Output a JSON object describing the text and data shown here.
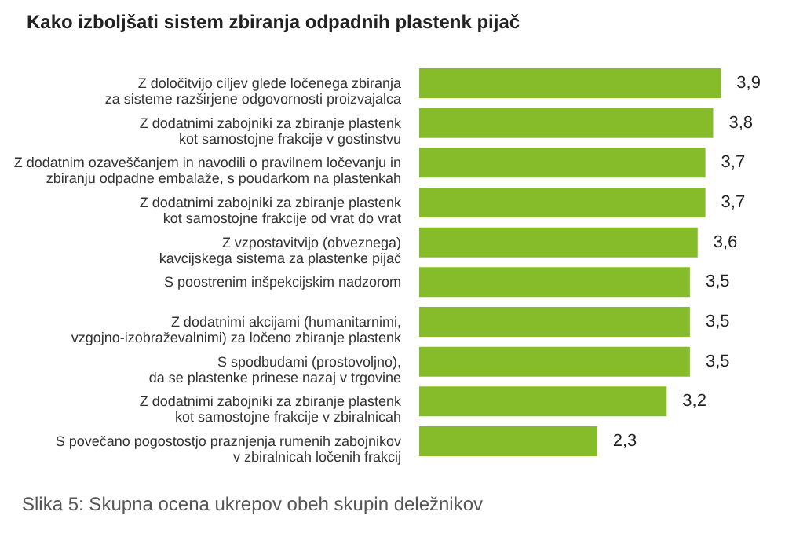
{
  "chart_data": {
    "type": "bar",
    "orientation": "horizontal",
    "title": "Kako izboljšati sistem zbiranja odpadnih plastenk pijač",
    "categories": [
      "Z določitvijo ciljev glede ločenega zbiranja\nza sisteme razširjene odgovornosti proizvajalca",
      "Z dodatnimi zabojniki za zbiranje plastenk\nkot samostojne frakcije v gostinstvu",
      "Z dodatnim ozaveščanjem in navodili o pravilnem ločevanju in\nzbiranju odpadne embalaže, s poudarkom na plastenkah",
      "Z dodatnimi zabojniki za zbiranje plastenk\nkot samostojne frakcije od vrat do vrat",
      "Z vzpostavitvijo (obveznega)\nkavcijskega sistema za plastenke pijač",
      "S poostrenim inšpekcijskim nadzorom",
      "Z dodatnimi akcijami (humanitarnimi,\nvzgojno-izobraževalnimi) za ločeno zbiranje plastenk",
      "S spodbudami (prostovoljno),\nda se plastenke prinese nazaj v trgovine",
      "Z dodatnimi zabojniki za zbiranje plastenk\nkot samostojne frakcije v zbiralnicah",
      "S povečano pogostostjo praznjenja rumenih zabojnikov\nv zbiralnicah ločenih frakcij"
    ],
    "values": [
      3.9,
      3.8,
      3.7,
      3.7,
      3.6,
      3.5,
      3.5,
      3.5,
      3.2,
      2.3
    ],
    "value_labels": [
      "3,9",
      "3,8",
      "3,7",
      "3,7",
      "3,6",
      "3,5",
      "3,5",
      "3,5",
      "3,2",
      "2,3"
    ],
    "color": "#86bb2a",
    "annotations": [
      "Slika 5: Skupna ocena ukrepov obeh skupin deležnikov"
    ]
  }
}
